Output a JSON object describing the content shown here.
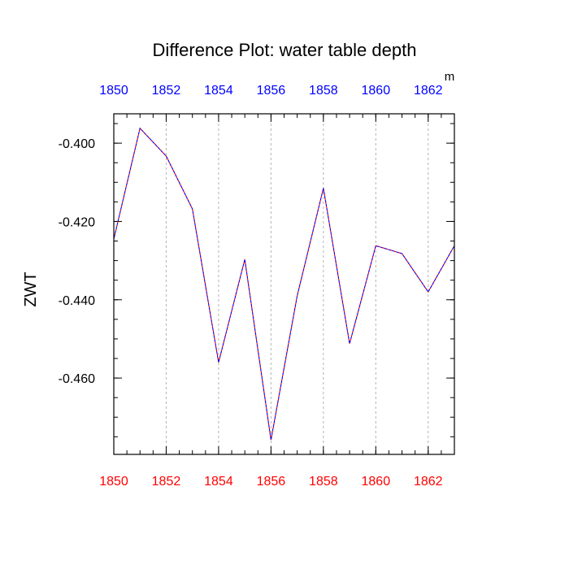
{
  "chart_data": {
    "type": "line",
    "title": "Difference Plot: water table depth",
    "units": "m",
    "ylabel": "ZWT",
    "xlabel": "",
    "xlim": [
      1850,
      1863
    ],
    "ylim": [
      -0.4795,
      -0.3925
    ],
    "x_ticks": [
      "1850",
      "1852",
      "1854",
      "1856",
      "1858",
      "1860",
      "1862"
    ],
    "x_tick_values": [
      1850,
      1852,
      1854,
      1856,
      1858,
      1860,
      1862
    ],
    "y_ticks": [
      "-0.400",
      "-0.420",
      "-0.440",
      "-0.460"
    ],
    "y_tick_values": [
      -0.4,
      -0.42,
      -0.44,
      -0.46
    ],
    "grid": "vertical dashed at major x ticks",
    "colors": {
      "bottom_axis_labels": "#ff0000",
      "top_axis_labels": "#0000ff",
      "line_primary": "#ff0000",
      "line_overlay": "#0000ff"
    },
    "series": [
      {
        "x": [
          1850,
          1851,
          1852,
          1853,
          1854,
          1855,
          1856,
          1857,
          1858,
          1859,
          1860,
          1861,
          1862,
          1863
        ],
        "values": [
          -0.4245,
          -0.3962,
          -0.4033,
          -0.4168,
          -0.456,
          -0.4297,
          -0.4758,
          -0.439,
          -0.4115,
          -0.4512,
          -0.4262,
          -0.4282,
          -0.438,
          -0.4262
        ]
      }
    ]
  }
}
